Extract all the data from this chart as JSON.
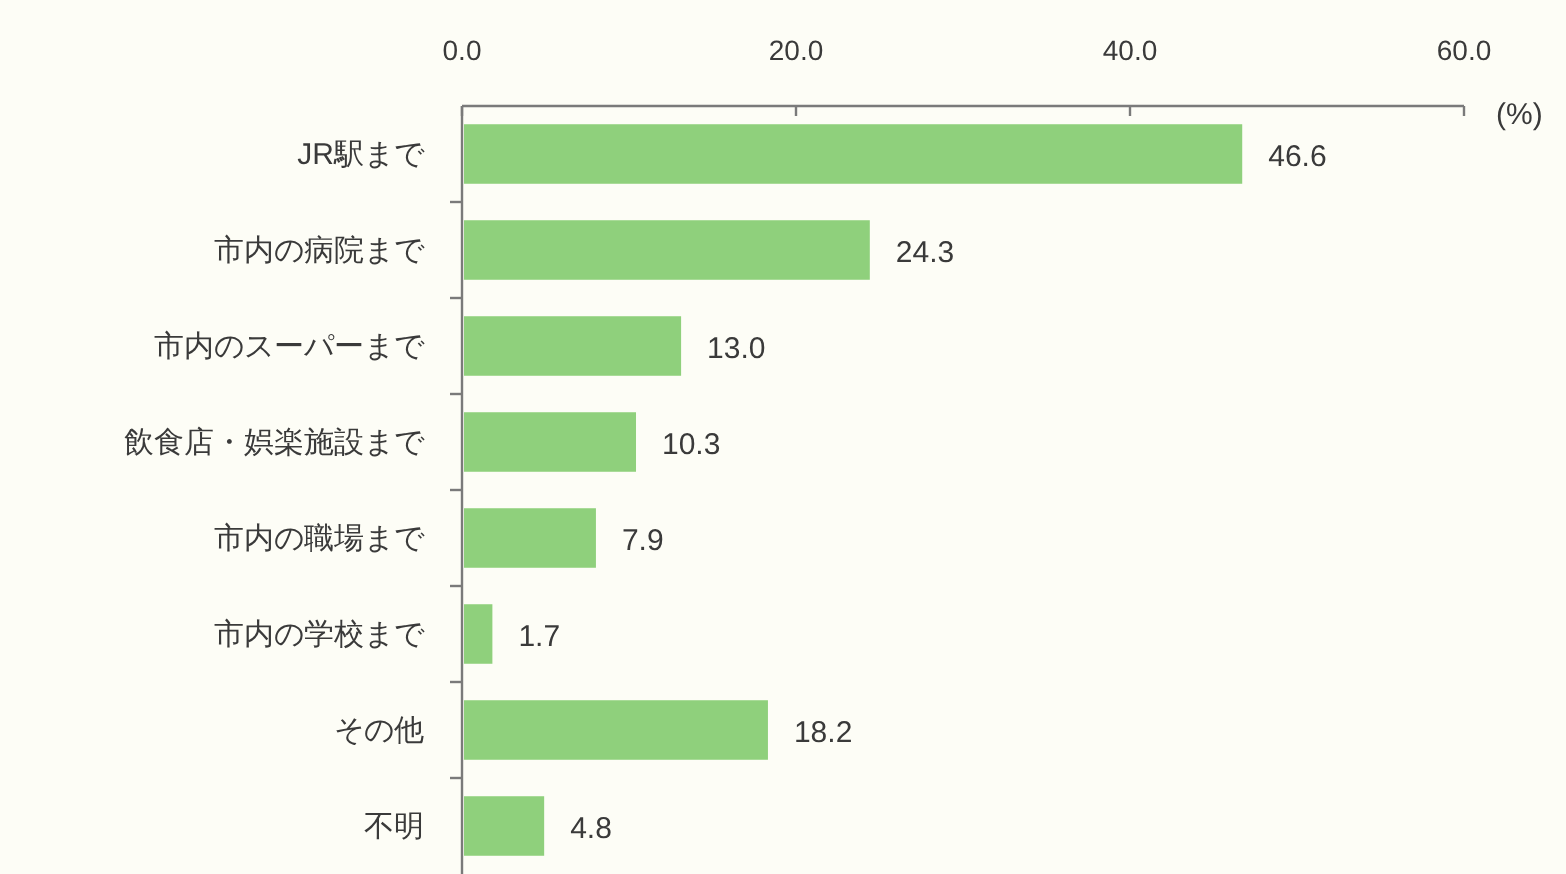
{
  "chart_data": {
    "type": "bar",
    "orientation": "horizontal",
    "xlabel": "(%)",
    "categories": [
      "JR駅まで",
      "市内の病院まで",
      "市内のスーパーまで",
      "飲食店・娯楽施設まで",
      "市内の職場まで",
      "市内の学校まで",
      "その他",
      "不明"
    ],
    "values": [
      46.6,
      24.3,
      13.0,
      10.3,
      7.9,
      1.7,
      18.2,
      4.8
    ],
    "color": "#8fd07c",
    "value_labels": [
      "46.6",
      "24.3",
      "13.0",
      "10.3",
      "7.9",
      "1.7",
      "18.2",
      "4.8"
    ],
    "xlim": [
      0,
      60
    ],
    "xticks": [
      {
        "value": 0,
        "label": "0.0"
      },
      {
        "value": 20,
        "label": "20.0"
      },
      {
        "value": 40,
        "label": "40.0"
      },
      {
        "value": 60,
        "label": "60.0"
      }
    ]
  }
}
